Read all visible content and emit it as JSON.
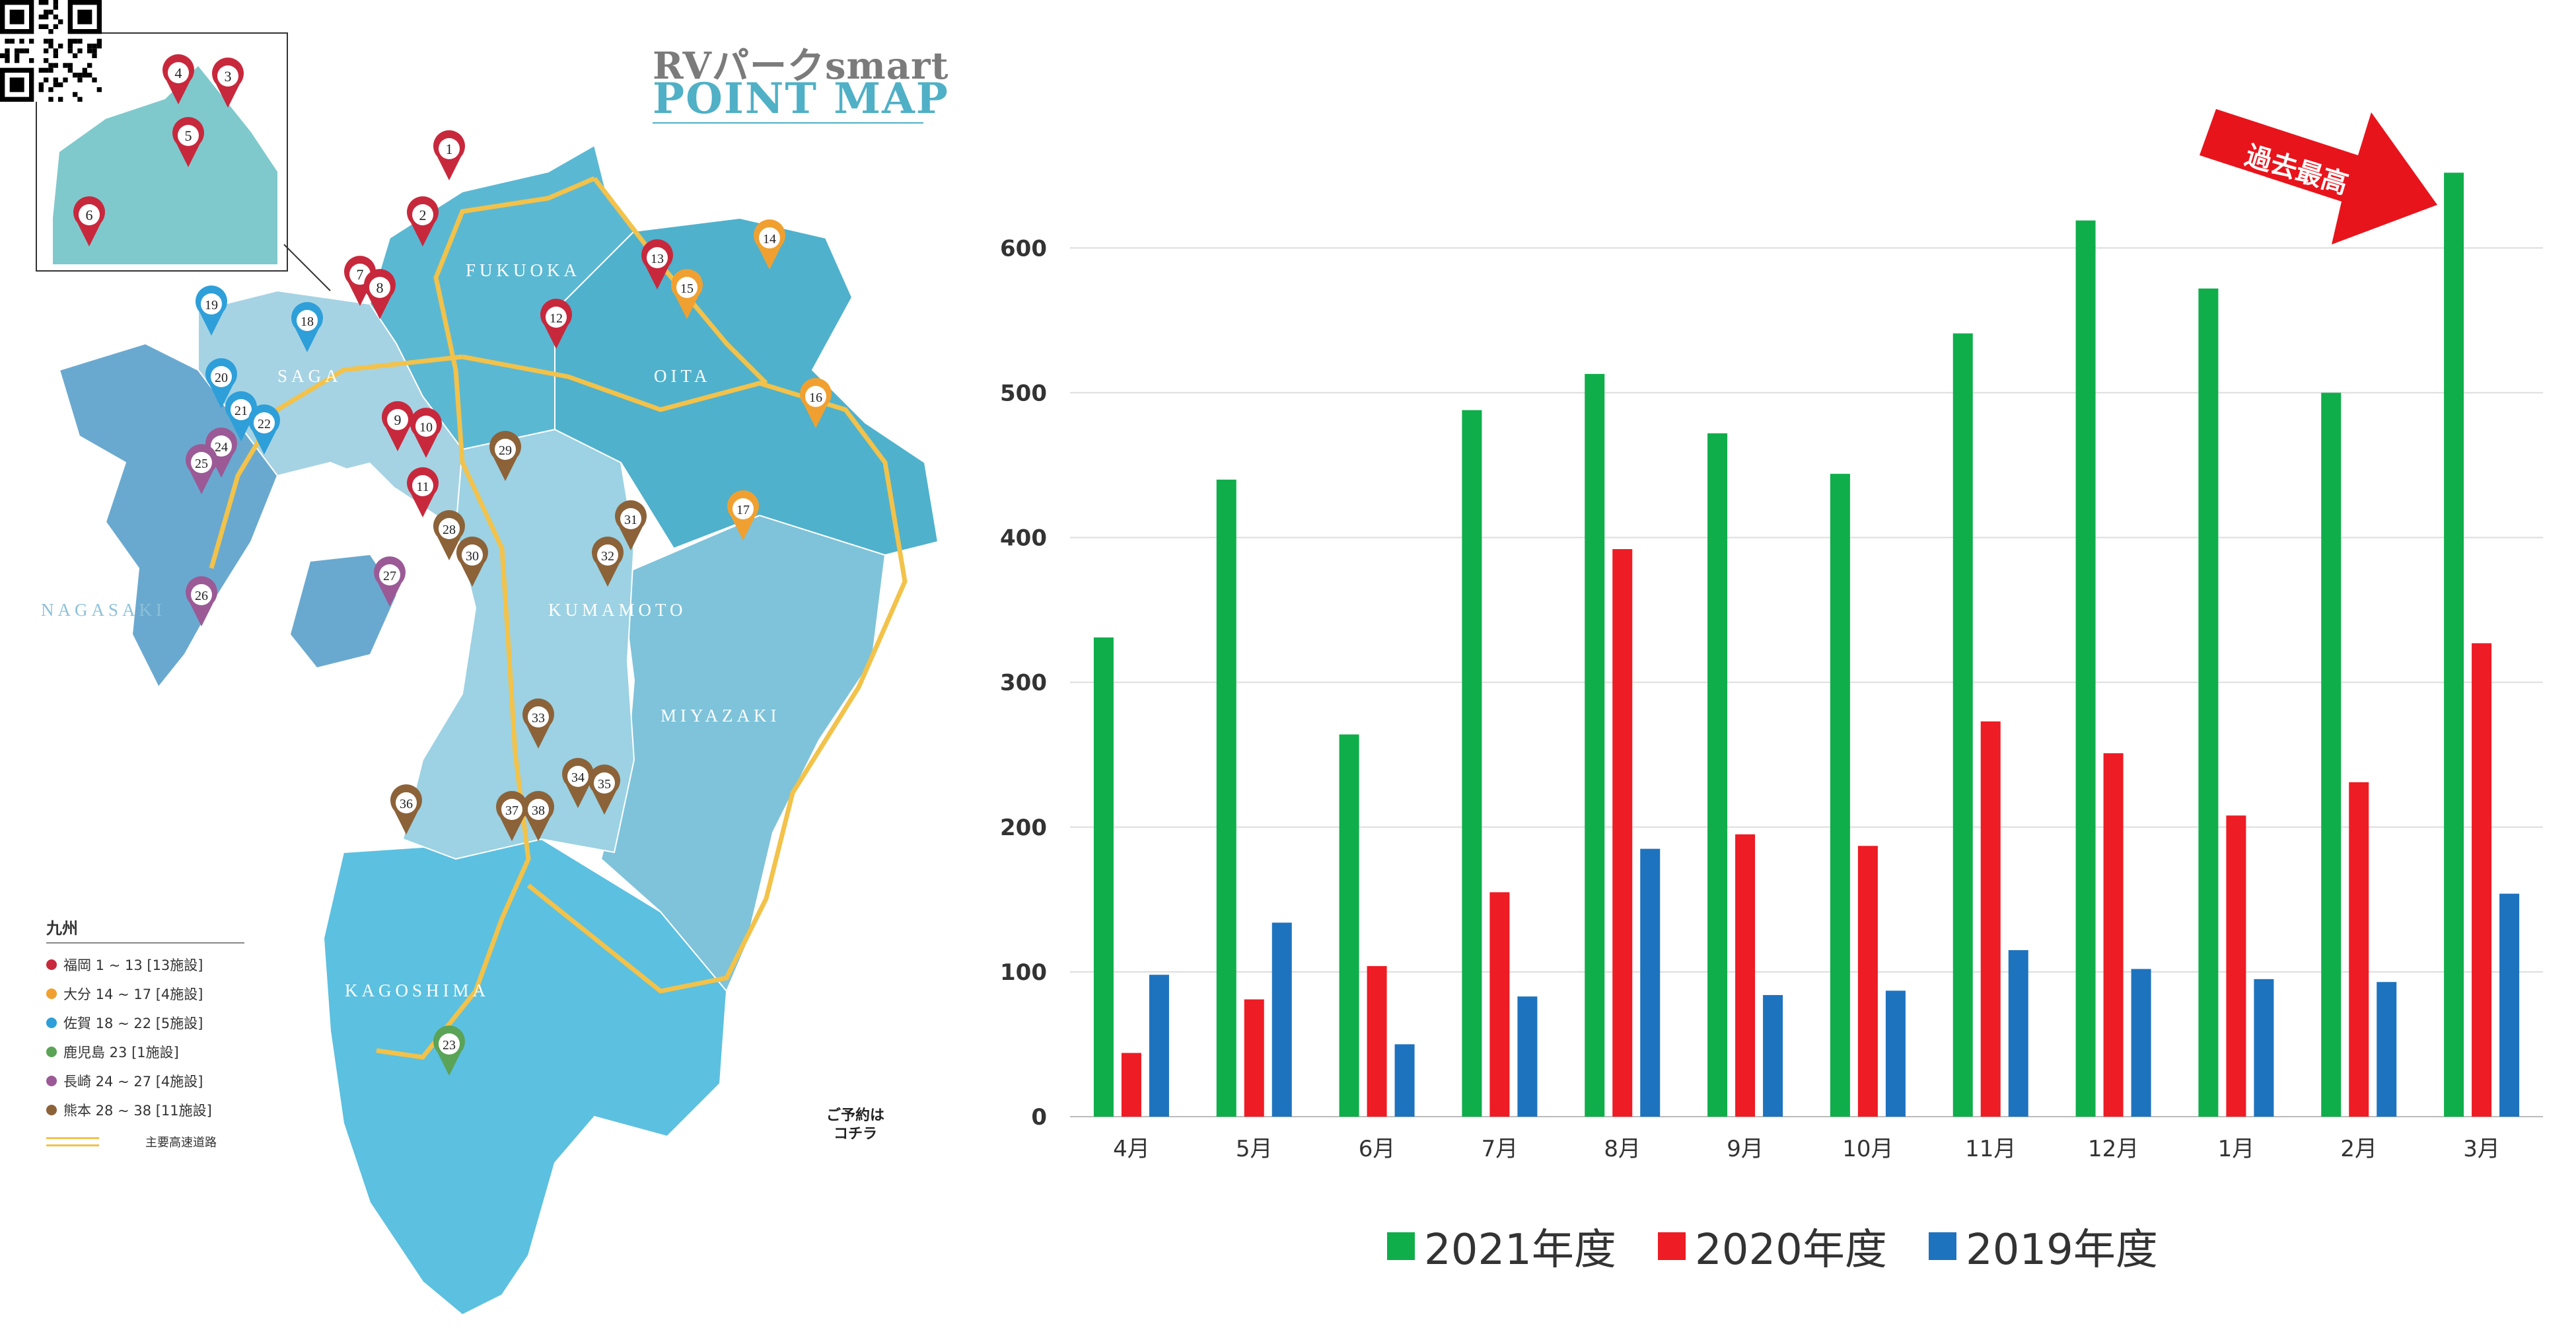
{
  "map": {
    "brand_line1": "RVパークsmart",
    "brand_line2": "POINT MAP",
    "regions": [
      {
        "name": "FUKUOKA",
        "color": "#5bb8d3"
      },
      {
        "name": "SAGA",
        "color": "#a6d3e3"
      },
      {
        "name": "OITA",
        "color": "#4fb1cc"
      },
      {
        "name": "NAGASAKI",
        "color": "#6aa9cf"
      },
      {
        "name": "KUMAMOTO",
        "color": "#9cd2e3"
      },
      {
        "name": "MIYAZAKI",
        "color": "#7ec3da"
      },
      {
        "name": "KAGOSHIMA",
        "color": "#5cc0e0"
      }
    ],
    "pins": [
      {
        "n": "1",
        "color": "#c8283c"
      },
      {
        "n": "2",
        "color": "#c8283c"
      },
      {
        "n": "3",
        "color": "#c8283c"
      },
      {
        "n": "4",
        "color": "#c8283c"
      },
      {
        "n": "5",
        "color": "#c8283c"
      },
      {
        "n": "6",
        "color": "#c8283c"
      },
      {
        "n": "7",
        "color": "#c8283c"
      },
      {
        "n": "8",
        "color": "#c8283c"
      },
      {
        "n": "9",
        "color": "#c8283c"
      },
      {
        "n": "10",
        "color": "#c8283c"
      },
      {
        "n": "11",
        "color": "#c8283c"
      },
      {
        "n": "12",
        "color": "#c8283c"
      },
      {
        "n": "13",
        "color": "#c8283c"
      },
      {
        "n": "14",
        "color": "#f0a030"
      },
      {
        "n": "15",
        "color": "#f0a030"
      },
      {
        "n": "16",
        "color": "#f0a030"
      },
      {
        "n": "17",
        "color": "#f0a030"
      },
      {
        "n": "18",
        "color": "#2e9fd9"
      },
      {
        "n": "19",
        "color": "#2e9fd9"
      },
      {
        "n": "20",
        "color": "#2e9fd9"
      },
      {
        "n": "21",
        "color": "#2e9fd9"
      },
      {
        "n": "22",
        "color": "#2e9fd9"
      },
      {
        "n": "23",
        "color": "#5aa357"
      },
      {
        "n": "24",
        "color": "#9b5a96"
      },
      {
        "n": "25",
        "color": "#9b5a96"
      },
      {
        "n": "26",
        "color": "#9b5a96"
      },
      {
        "n": "27",
        "color": "#9b5a96"
      },
      {
        "n": "28",
        "color": "#8c6239"
      },
      {
        "n": "29",
        "color": "#8c6239"
      },
      {
        "n": "30",
        "color": "#8c6239"
      },
      {
        "n": "31",
        "color": "#8c6239"
      },
      {
        "n": "32",
        "color": "#8c6239"
      },
      {
        "n": "33",
        "color": "#8c6239"
      },
      {
        "n": "34",
        "color": "#8c6239"
      },
      {
        "n": "35",
        "color": "#8c6239"
      },
      {
        "n": "36",
        "color": "#8c6239"
      },
      {
        "n": "37",
        "color": "#8c6239"
      },
      {
        "n": "38",
        "color": "#8c6239"
      }
    ],
    "legend": {
      "title": "九州",
      "items": [
        {
          "label": "福岡 1 ~ 13 [13施設]",
          "color": "#c8283c"
        },
        {
          "label": "大分 14 ~ 17 [4施設]",
          "color": "#f0a030"
        },
        {
          "label": "佐賀 18 ~ 22 [5施設]",
          "color": "#2e9fd9"
        },
        {
          "label": "鹿児島 23 [1施設]",
          "color": "#5aa357"
        },
        {
          "label": "長崎 24 ~ 27 [4施設]",
          "color": "#9b5a96"
        },
        {
          "label": "熊本 28 ~ 38 [11施設]",
          "color": "#8c6239"
        }
      ],
      "road_label": "主要高速道路"
    },
    "qr_caption_line1": "ご予約は",
    "qr_caption_line2": "コチラ"
  },
  "callout": {
    "text": "過去最高",
    "color": "#e8141c"
  },
  "chart_data": {
    "type": "bar",
    "categories": [
      "4月",
      "5月",
      "6月",
      "7月",
      "8月",
      "9月",
      "10月",
      "11月",
      "12月",
      "1月",
      "2月",
      "3月"
    ],
    "series": [
      {
        "name": "2021年度",
        "color": "#0fae4b",
        "values": [
          331,
          440,
          264,
          488,
          513,
          472,
          444,
          541,
          619,
          572,
          500,
          652
        ]
      },
      {
        "name": "2020年度",
        "color": "#ee1c24",
        "values": [
          44,
          81,
          104,
          155,
          392,
          195,
          187,
          273,
          251,
          208,
          231,
          327
        ]
      },
      {
        "name": "2019年度",
        "color": "#1e73be",
        "values": [
          98,
          134,
          50,
          83,
          185,
          84,
          87,
          115,
          102,
          95,
          93,
          154
        ]
      }
    ],
    "yticks": [
      0,
      100,
      200,
      300,
      400,
      500,
      600
    ],
    "ylim": [
      0,
      680
    ],
    "grid": true,
    "legend_position": "bottom"
  }
}
